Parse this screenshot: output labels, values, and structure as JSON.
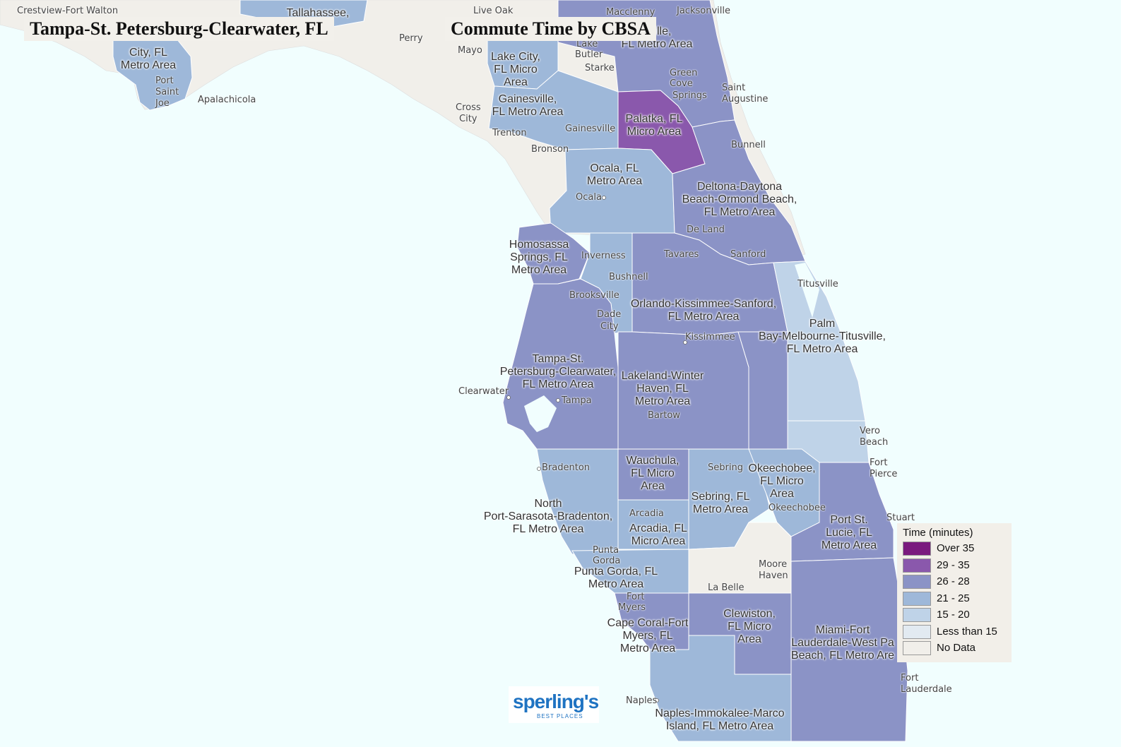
{
  "title_left": "Tampa-St. Petersburg-Clearwater, FL",
  "title_right": "Commute Time by CBSA",
  "colors": {
    "water": "#f1fefe",
    "no_data": "#f1efea",
    "over_35": "#7a1a7e",
    "r29_35": "#8a58ac",
    "r26_28": "#8b93c6",
    "r21_25": "#9eb8d9",
    "r15_20": "#bfd3e8",
    "lt15": "#e2eaf1",
    "border": "#ffffff"
  },
  "legend": {
    "title": "Time (minutes)",
    "items": [
      {
        "label": "Over 35",
        "color": "#7a1a7e"
      },
      {
        "label": "29 - 35",
        "color": "#8a58ac"
      },
      {
        "label": "26 - 28",
        "color": "#8b93c6"
      },
      {
        "label": "21 - 25",
        "color": "#9eb8d9"
      },
      {
        "label": "15 - 20",
        "color": "#bfd3e8"
      },
      {
        "label": "Less than 15",
        "color": "#e2eaf1"
      },
      {
        "label": "No Data",
        "color": "#f1efea"
      }
    ]
  },
  "areas": [
    {
      "id": "tallahassee",
      "lines": [
        "Tallahassee,"
      ]
    },
    {
      "id": "panama",
      "lines": [
        "City, FL",
        "Metro Area"
      ]
    },
    {
      "id": "jacksonville",
      "lines": [
        "nville,",
        "FL Metro Area"
      ]
    },
    {
      "id": "lakecity",
      "lines": [
        "Lake City,",
        "FL Micro",
        "Area"
      ]
    },
    {
      "id": "gainesville",
      "lines": [
        "Gainesville,",
        "FL Metro Area"
      ]
    },
    {
      "id": "palatka",
      "lines": [
        "Palatka, FL",
        "Micro Area"
      ]
    },
    {
      "id": "ocala",
      "lines": [
        "Ocala, FL",
        "Metro Area"
      ]
    },
    {
      "id": "deltona",
      "lines": [
        "Deltona-Daytona",
        "Beach-Ormond Beach,",
        "FL Metro Area"
      ]
    },
    {
      "id": "homosassa",
      "lines": [
        "Homosassa",
        "Springs, FL",
        "Metro Area"
      ]
    },
    {
      "id": "orlando",
      "lines": [
        "Orlando-Kissimmee-Sanford,",
        "FL Metro Area"
      ]
    },
    {
      "id": "palmbay",
      "lines": [
        "Palm",
        "Bay-Melbourne-Titusville,",
        "FL Metro Area"
      ]
    },
    {
      "id": "tampa",
      "lines": [
        "Tampa-St.",
        "Petersburg-Clearwater,",
        "FL Metro Area"
      ]
    },
    {
      "id": "lakeland",
      "lines": [
        "Lakeland-Winter",
        "Haven, FL",
        "Metro Area"
      ]
    },
    {
      "id": "wauchula",
      "lines": [
        "Wauchula,",
        "FL Micro",
        "Area"
      ]
    },
    {
      "id": "okeechobee",
      "lines": [
        "Okeechobee,",
        "FL Micro",
        "Area"
      ]
    },
    {
      "id": "sebring",
      "lines": [
        "Sebring, FL",
        "Metro Area"
      ]
    },
    {
      "id": "northport",
      "lines": [
        "North",
        "Port-Sarasota-Bradenton,",
        "FL Metro Area"
      ]
    },
    {
      "id": "arcadia",
      "lines": [
        "Arcadia, FL",
        "Micro Area"
      ]
    },
    {
      "id": "portstlucie",
      "lines": [
        "Port St.",
        "Lucie, FL",
        "Metro Area"
      ]
    },
    {
      "id": "puntagorda",
      "lines": [
        "Punta Gorda, FL",
        "Metro Area"
      ]
    },
    {
      "id": "capecoral",
      "lines": [
        "Cape Coral-Fort",
        "Myers, FL",
        "Metro Area"
      ]
    },
    {
      "id": "clewiston",
      "lines": [
        "Clewiston,",
        "FL Micro",
        "Area"
      ]
    },
    {
      "id": "miami",
      "lines": [
        "Miami-Fort",
        "Lauderdale-West Pa",
        "Beach, FL Metro Are"
      ]
    },
    {
      "id": "naples",
      "lines": [
        "Naples-Immokalee-Marco",
        "Island, FL Metro Area"
      ]
    }
  ],
  "cities": [
    "Crestview-Fort Walton",
    "Live Oak",
    "Macclenny",
    "Jacksonville",
    "Perry",
    "Mayo",
    "Lake",
    "Butler",
    "Starke",
    "Green",
    "Cove",
    "Springs",
    "Saint",
    "Augustine",
    "Port",
    "Saint",
    "Joe",
    "Apalachicola",
    "Cross",
    "City",
    "Trenton",
    "Gainesville",
    "Bronson",
    "Bunnell",
    "Ocala",
    "De Land",
    "Tavares",
    "Sanford",
    "Inverness",
    "Bushnell",
    "Titusville",
    "Brooksville",
    "Dade",
    "City",
    "Kissimmee",
    "Clearwater",
    "Tampa",
    "Bartow",
    "Vero",
    "Beach",
    "Bradenton",
    "Sebring",
    "Fort",
    "Pierce",
    "Okeechobee",
    "Arcadia",
    "Stuart",
    "Punta",
    "Gorda",
    "Moore",
    "Haven",
    "La Belle",
    "Fort",
    "Myers",
    "Naples",
    "Fort",
    "Lauderdale"
  ],
  "logo": {
    "main": "sperling's",
    "sub": "BEST PLACES"
  }
}
